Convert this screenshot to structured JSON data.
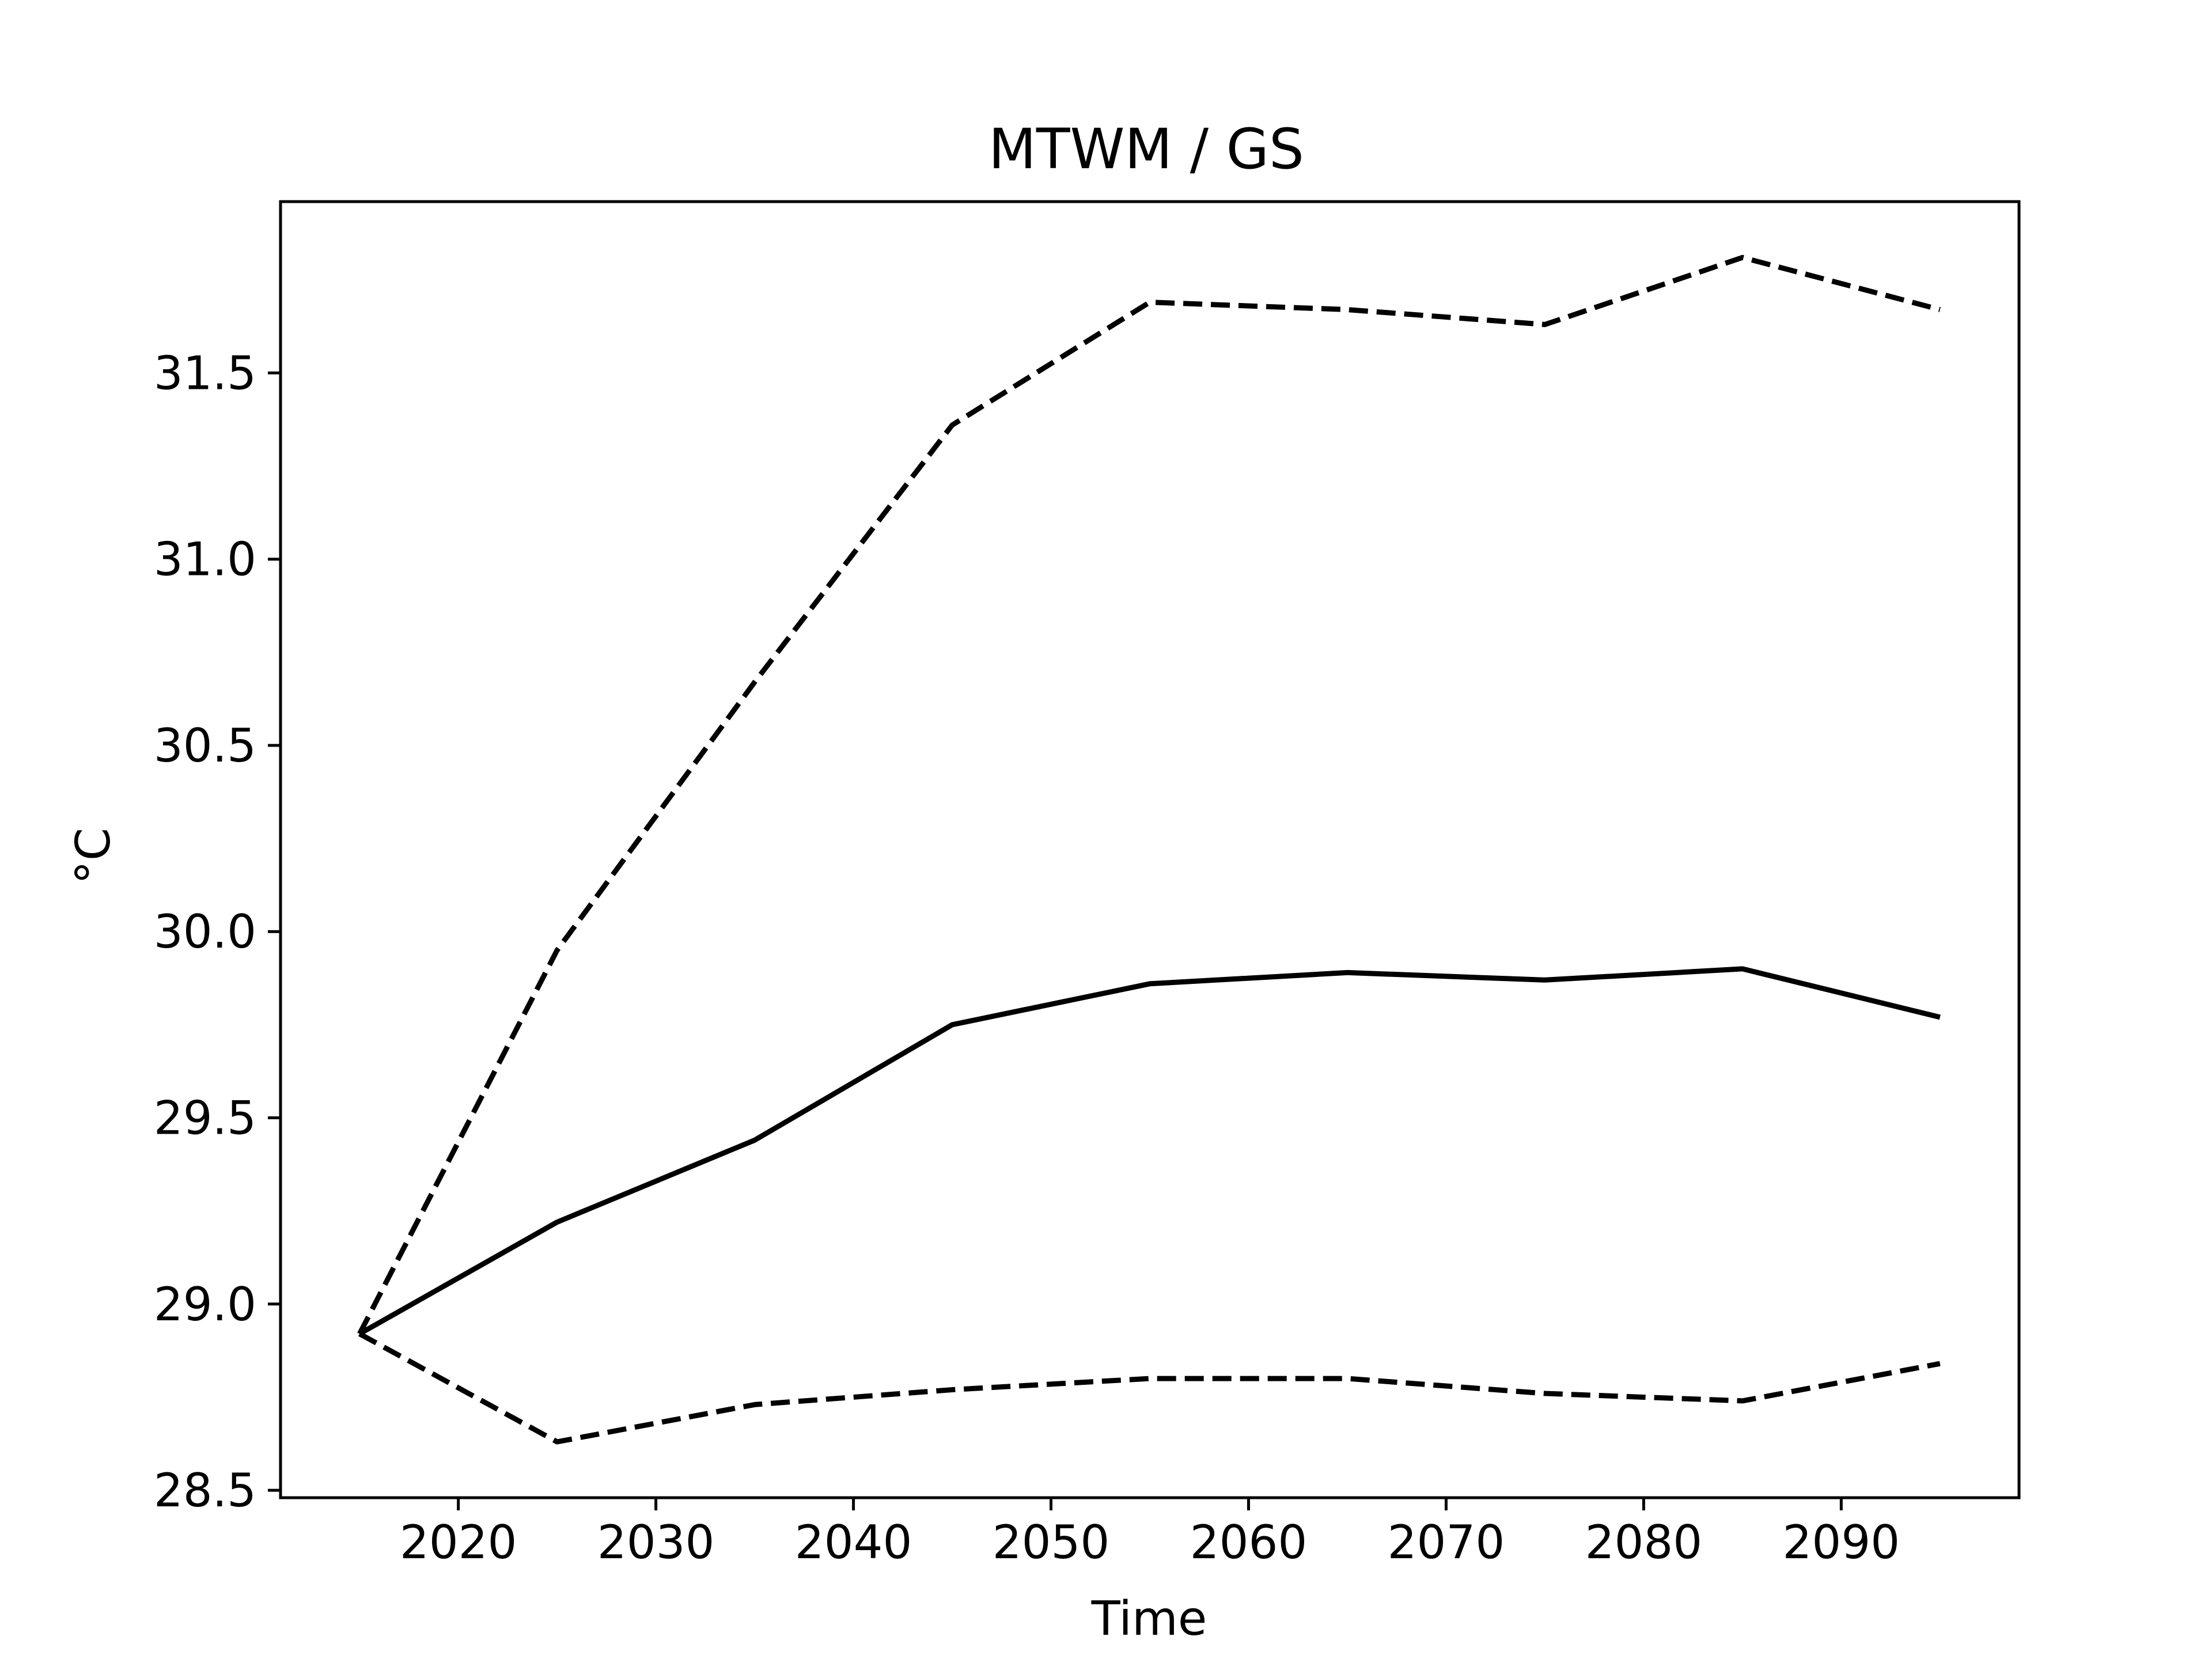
{
  "chart_data": {
    "type": "line",
    "title": "MTWM / GS",
    "xlabel": "Time",
    "ylabel": "°C",
    "xlim": [
      2011,
      2099
    ],
    "ylim": [
      28.48,
      31.96
    ],
    "x_ticks": [
      2020,
      2030,
      2040,
      2050,
      2060,
      2070,
      2080,
      2090
    ],
    "y_ticks": [
      28.5,
      29.0,
      29.5,
      30.0,
      30.5,
      31.0,
      31.5
    ],
    "y_tick_labels": [
      "28.5",
      "29.0",
      "29.5",
      "30.0",
      "30.5",
      "31.0",
      "31.5"
    ],
    "grid": false,
    "x": [
      2015,
      2025,
      2035,
      2045,
      2055,
      2065,
      2075,
      2085,
      2095
    ],
    "series": [
      {
        "style": "dashed",
        "color": "#000000",
        "values": [
          28.92,
          29.95,
          30.67,
          31.36,
          31.69,
          31.67,
          31.63,
          31.81,
          31.67
        ]
      },
      {
        "style": "solid",
        "color": "#000000",
        "values": [
          28.92,
          29.22,
          29.44,
          29.75,
          29.86,
          29.89,
          29.87,
          29.9,
          29.77
        ]
      },
      {
        "style": "dashed",
        "color": "#000000",
        "values": [
          28.92,
          28.63,
          28.73,
          28.77,
          28.8,
          28.8,
          28.76,
          28.74,
          28.84
        ]
      }
    ]
  }
}
